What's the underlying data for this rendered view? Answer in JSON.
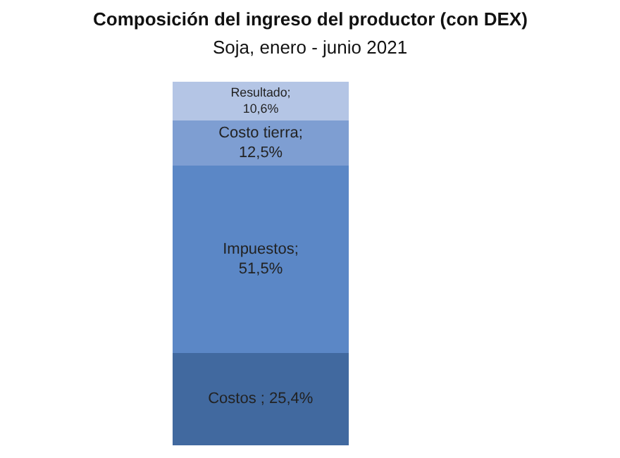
{
  "chart_data": {
    "type": "bar",
    "stacked": true,
    "title": "Composición del ingreso del productor (con DEX)",
    "subtitle": "Soja, enero - junio 2021",
    "categories": [
      null
    ],
    "series": [
      {
        "color": "#41699f",
        "values": [
          25.4
        ],
        "value_labels": [
          "Costos ; 25,4%"
        ]
      },
      {
        "color": "#5b87c6",
        "values": [
          51.5
        ],
        "value_labels": [
          "Impuestos;\n51,5%"
        ]
      },
      {
        "color": "#7e9ed2",
        "values": [
          12.5
        ],
        "value_labels": [
          "Costo tierra;\n12,5%"
        ]
      },
      {
        "color": "#b4c5e5",
        "values": [
          10.6
        ],
        "value_labels": [
          "Resultado;\n10,6%"
        ]
      }
    ]
  }
}
